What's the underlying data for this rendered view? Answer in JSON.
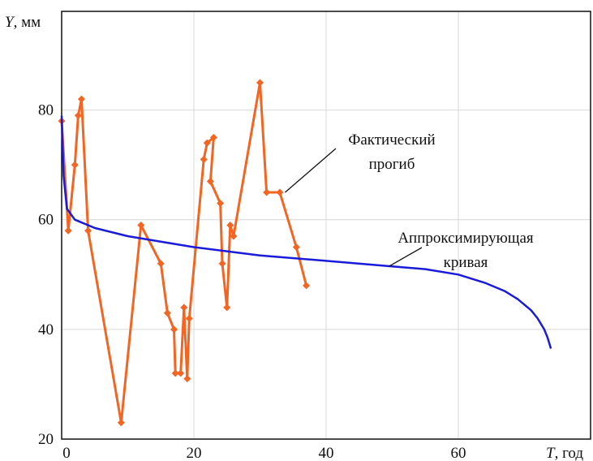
{
  "chart_data": {
    "type": "line",
    "xlabel": {
      "var": "T",
      "unit": ", год"
    },
    "ylabel": {
      "var": "Y",
      "unit": ", мм"
    },
    "xlim": [
      0,
      80
    ],
    "ylim": [
      20,
      98
    ],
    "xticks": [
      0,
      20,
      40,
      60
    ],
    "yticks": [
      20,
      40,
      60,
      80
    ],
    "grid": true,
    "series": [
      {
        "name": "Фактический прогиб",
        "color": "#f26522",
        "marker": "diamond",
        "x": [
          0,
          1,
          2,
          2.5,
          3,
          4,
          9,
          12,
          15,
          16,
          17,
          17.2,
          18,
          18.5,
          19,
          19.3,
          21.5,
          22,
          23,
          22.5,
          24,
          24.3,
          25,
          25.5,
          26,
          30,
          31,
          33,
          35.5,
          37
        ],
        "y": [
          78,
          58,
          70,
          79,
          82,
          58,
          23,
          59,
          52,
          43,
          40,
          32,
          32,
          44,
          31,
          42,
          71,
          74,
          75,
          67,
          63,
          52,
          44,
          59,
          57,
          85,
          65,
          65,
          55,
          48
        ]
      },
      {
        "name": "Аппроксимирующая кривая",
        "color": "#1a1adb",
        "x": [
          0,
          0.3,
          0.8,
          2,
          5,
          10,
          20,
          30,
          40,
          50,
          55,
          60,
          64,
          67,
          69,
          71,
          72,
          73,
          73.5,
          74
        ],
        "y": [
          79,
          68,
          62,
          60,
          58.5,
          57,
          55,
          53.5,
          52.5,
          51.5,
          51,
          50,
          48.5,
          47,
          45.5,
          43.5,
          42,
          40,
          38.5,
          36.5
        ]
      }
    ],
    "annotations": [
      {
        "lines": [
          "Фактический",
          "прогиб"
        ],
        "target_series": 0
      },
      {
        "lines": [
          "Аппроксимирующая",
          "кривая"
        ],
        "target_series": 1
      }
    ]
  }
}
